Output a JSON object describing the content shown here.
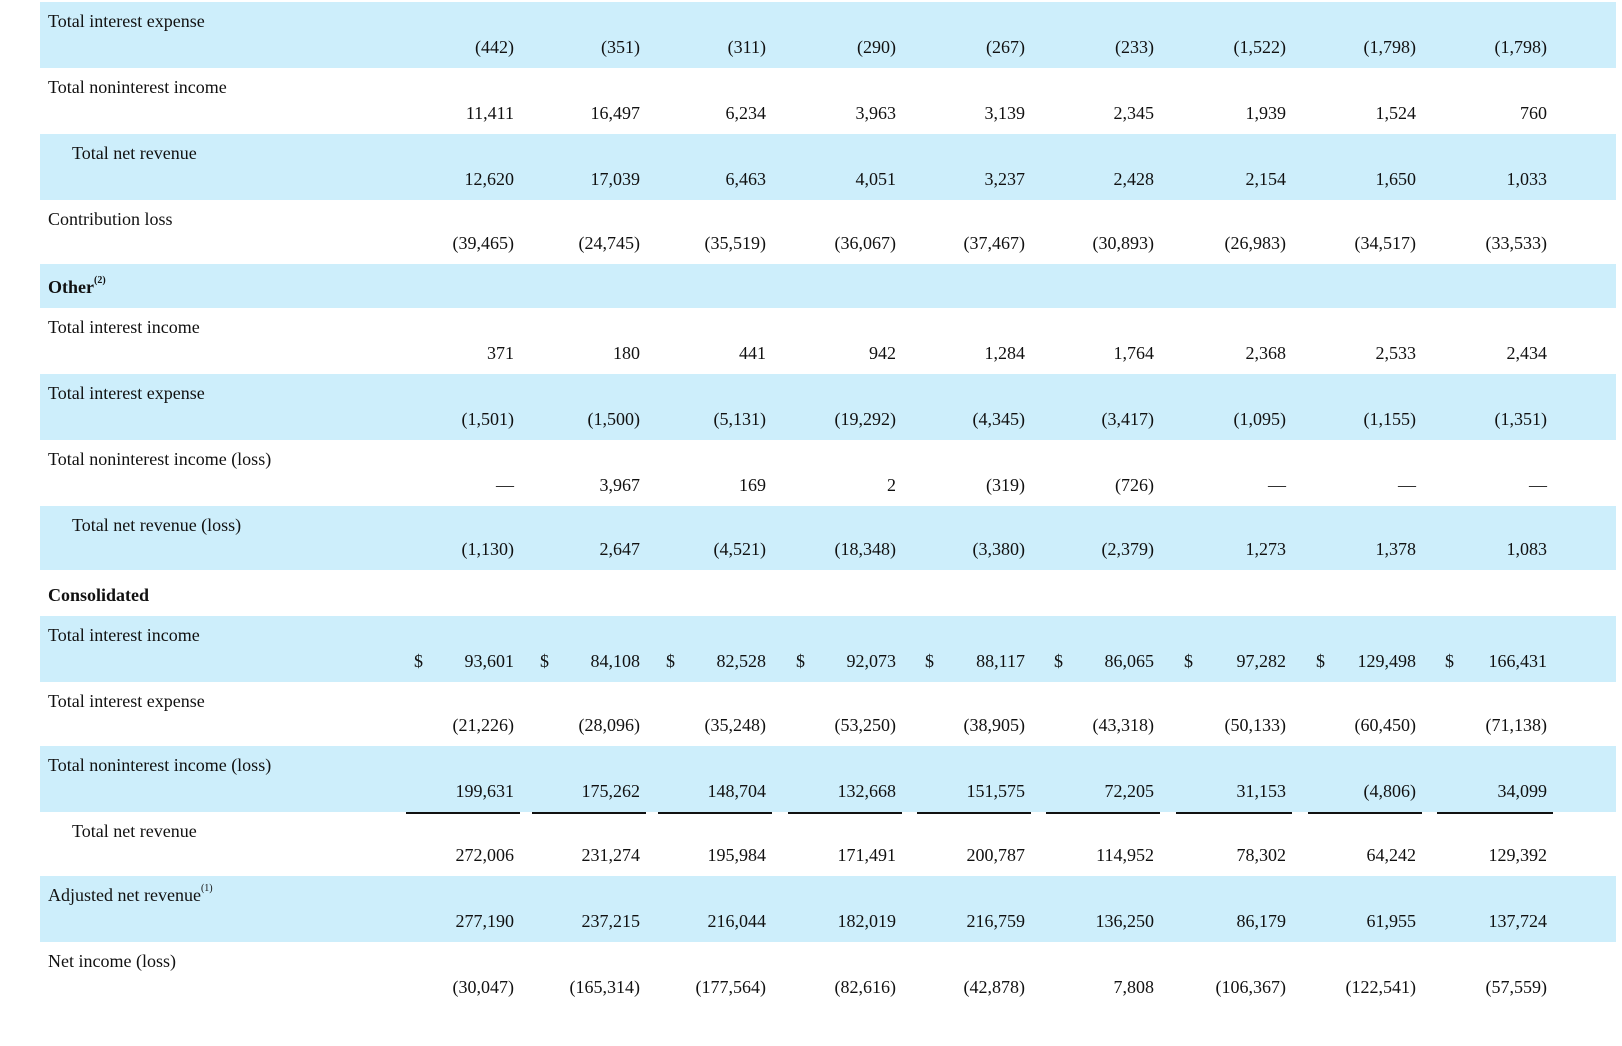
{
  "rows": [
    {
      "label": "Total interest expense",
      "values": [
        "(442)",
        "(351)",
        "(311)",
        "(290)",
        "(267)",
        "(233)",
        "(1,522)",
        "(1,798)",
        "(1,798)"
      ]
    },
    {
      "label": "Total noninterest income",
      "values": [
        "11,411",
        "16,497",
        "6,234",
        "3,963",
        "3,139",
        "2,345",
        "1,939",
        "1,524",
        "760"
      ]
    },
    {
      "label": "Total net revenue",
      "values": [
        "12,620",
        "17,039",
        "6,463",
        "4,051",
        "3,237",
        "2,428",
        "2,154",
        "1,650",
        "1,033"
      ]
    },
    {
      "label": "Contribution loss",
      "values": [
        "(39,465)",
        "(24,745)",
        "(35,519)",
        "(36,067)",
        "(37,467)",
        "(30,893)",
        "(26,983)",
        "(34,517)",
        "(33,533)"
      ]
    },
    {
      "label": "Other",
      "note": "(2)"
    },
    {
      "label": "Total interest income",
      "values": [
        "371",
        "180",
        "441",
        "942",
        "1,284",
        "1,764",
        "2,368",
        "2,533",
        "2,434"
      ]
    },
    {
      "label": "Total interest expense",
      "values": [
        "(1,501)",
        "(1,500)",
        "(5,131)",
        "(19,292)",
        "(4,345)",
        "(3,417)",
        "(1,095)",
        "(1,155)",
        "(1,351)"
      ]
    },
    {
      "label": "Total noninterest income (loss)",
      "values": [
        "—",
        "3,967",
        "169",
        "2",
        "(319)",
        "(726)",
        "—",
        "—",
        "—"
      ]
    },
    {
      "label": "Total net revenue (loss)",
      "values": [
        "(1,130)",
        "2,647",
        "(4,521)",
        "(18,348)",
        "(3,380)",
        "(2,379)",
        "1,273",
        "1,378",
        "1,083"
      ]
    },
    {
      "label": "Consolidated"
    },
    {
      "label": "Total interest income",
      "currency": "$",
      "values": [
        "93,601",
        "84,108",
        "82,528",
        "92,073",
        "88,117",
        "86,065",
        "97,282",
        "129,498",
        "166,431"
      ]
    },
    {
      "label": "Total interest expense",
      "values": [
        "(21,226)",
        "(28,096)",
        "(35,248)",
        "(53,250)",
        "(38,905)",
        "(43,318)",
        "(50,133)",
        "(60,450)",
        "(71,138)"
      ]
    },
    {
      "label": "Total noninterest income (loss)",
      "values": [
        "199,631",
        "175,262",
        "148,704",
        "132,668",
        "151,575",
        "72,205",
        "31,153",
        "(4,806)",
        "34,099"
      ]
    },
    {
      "label": "Total net revenue",
      "values": [
        "272,006",
        "231,274",
        "195,984",
        "171,491",
        "200,787",
        "114,952",
        "78,302",
        "64,242",
        "129,392"
      ]
    },
    {
      "label": "Adjusted net revenue",
      "note": "(1)",
      "values": [
        "277,190",
        "237,215",
        "216,044",
        "182,019",
        "216,759",
        "136,250",
        "86,179",
        "61,955",
        "137,724"
      ]
    },
    {
      "label": "Net income (loss)",
      "values": [
        "(30,047)",
        "(165,314)",
        "(177,564)",
        "(82,616)",
        "(42,878)",
        "7,808",
        "(106,367)",
        "(122,541)",
        "(57,559)"
      ]
    }
  ]
}
